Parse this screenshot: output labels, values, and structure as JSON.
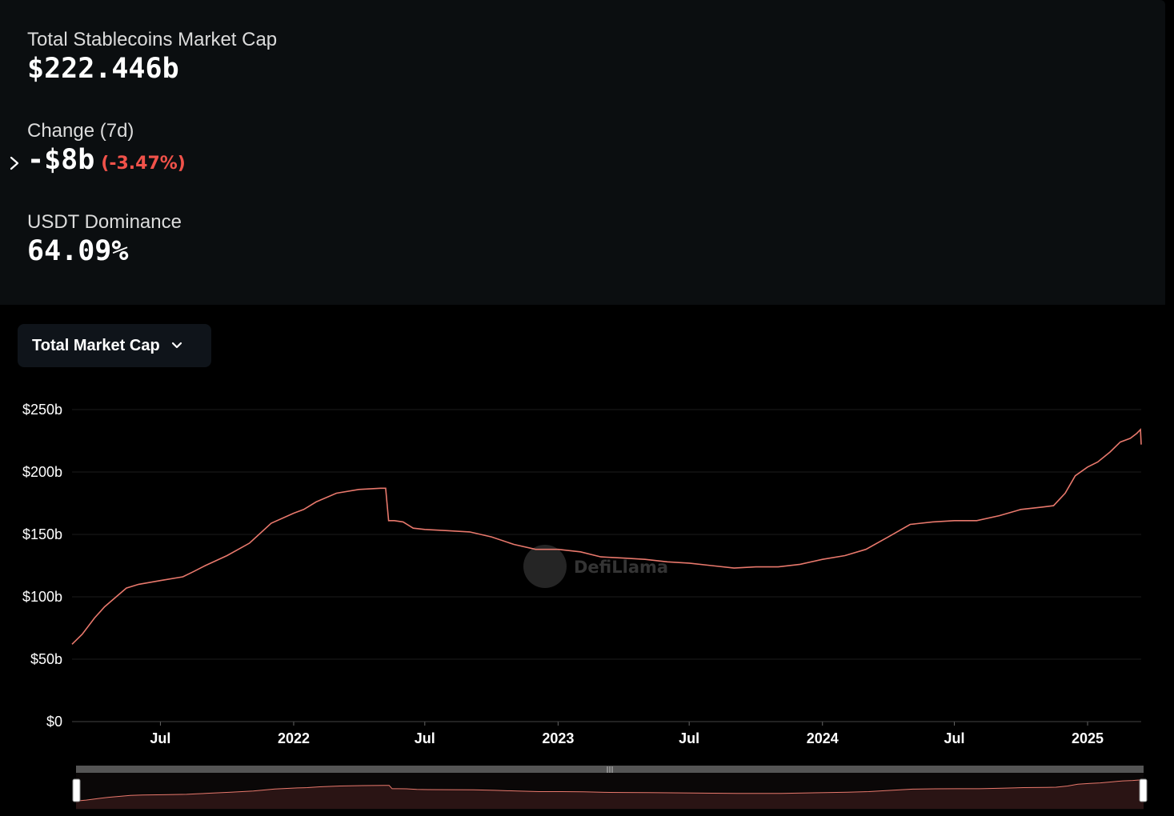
{
  "stats": {
    "market_cap_label": "Total Stablecoins Market Cap",
    "market_cap_value": "$222.446b",
    "change_label": "Change (7d)",
    "change_value": "-$8b",
    "change_percent": "(-3.47%)",
    "dominance_label": "USDT Dominance",
    "dominance_value": "64.09%"
  },
  "dropdown": {
    "label": "Total Market Cap"
  },
  "watermark": "DefiLlama",
  "colors": {
    "line": "#e8786c",
    "negative": "#f0524a",
    "panel": "#0b0e10"
  },
  "chart_data": {
    "type": "line",
    "series": [
      {
        "color": "#e8786c",
        "x": [
          "2021-03-01",
          "2021-03-15",
          "2021-04-01",
          "2021-04-15",
          "2021-05-01",
          "2021-05-15",
          "2021-06-01",
          "2021-07-01",
          "2021-08-01",
          "2021-08-15",
          "2021-09-01",
          "2021-10-01",
          "2021-11-01",
          "2021-12-01",
          "2022-01-01",
          "2022-01-15",
          "2022-02-01",
          "2022-03-01",
          "2022-04-01",
          "2022-05-01",
          "2022-05-08",
          "2022-05-12",
          "2022-05-20",
          "2022-06-01",
          "2022-06-15",
          "2022-07-01",
          "2022-08-01",
          "2022-09-01",
          "2022-10-01",
          "2022-11-01",
          "2022-12-01",
          "2023-01-01",
          "2023-02-01",
          "2023-03-01",
          "2023-04-01",
          "2023-05-01",
          "2023-06-01",
          "2023-07-01",
          "2023-08-01",
          "2023-09-01",
          "2023-10-01",
          "2023-11-01",
          "2023-12-01",
          "2024-01-01",
          "2024-02-01",
          "2024-03-01",
          "2024-04-01",
          "2024-05-01",
          "2024-06-01",
          "2024-07-01",
          "2024-08-01",
          "2024-09-01",
          "2024-10-01",
          "2024-11-01",
          "2024-11-15",
          "2024-12-01",
          "2024-12-15",
          "2025-01-01",
          "2025-01-15",
          "2025-02-01",
          "2025-02-15",
          "2025-03-01",
          "2025-03-10",
          "2025-03-15",
          "2025-03-16"
        ],
        "values": [
          62,
          70,
          83,
          92,
          100,
          107,
          110,
          113,
          116,
          120,
          125,
          133,
          143,
          159,
          167,
          170,
          176,
          183,
          186,
          187,
          187,
          161,
          161,
          160,
          155,
          154,
          153,
          152,
          148,
          142,
          138,
          138,
          136,
          132,
          131,
          130,
          128,
          127,
          125,
          123,
          124,
          124,
          126,
          130,
          133,
          138,
          148,
          158,
          160,
          161,
          161,
          165,
          170,
          172,
          173,
          183,
          197,
          204,
          208,
          216,
          224,
          227,
          231,
          234,
          222
        ]
      }
    ],
    "y_ticks": [
      "$0",
      "$50b",
      "$100b",
      "$150b",
      "$200b",
      "$250b"
    ],
    "y_tick_values": [
      0,
      50,
      100,
      150,
      200,
      250
    ],
    "ylim": [
      0,
      250
    ],
    "x_ticks": [
      "Jul",
      "2022",
      "Jul",
      "2023",
      "Jul",
      "2024",
      "Jul",
      "2025"
    ],
    "x_tick_dates": [
      "2021-07-01",
      "2022-01-01",
      "2022-07-01",
      "2023-01-01",
      "2023-07-01",
      "2024-01-01",
      "2024-07-01",
      "2025-01-01"
    ],
    "xlim": [
      "2021-03-01",
      "2025-03-16"
    ],
    "grid": true,
    "brush": true
  }
}
